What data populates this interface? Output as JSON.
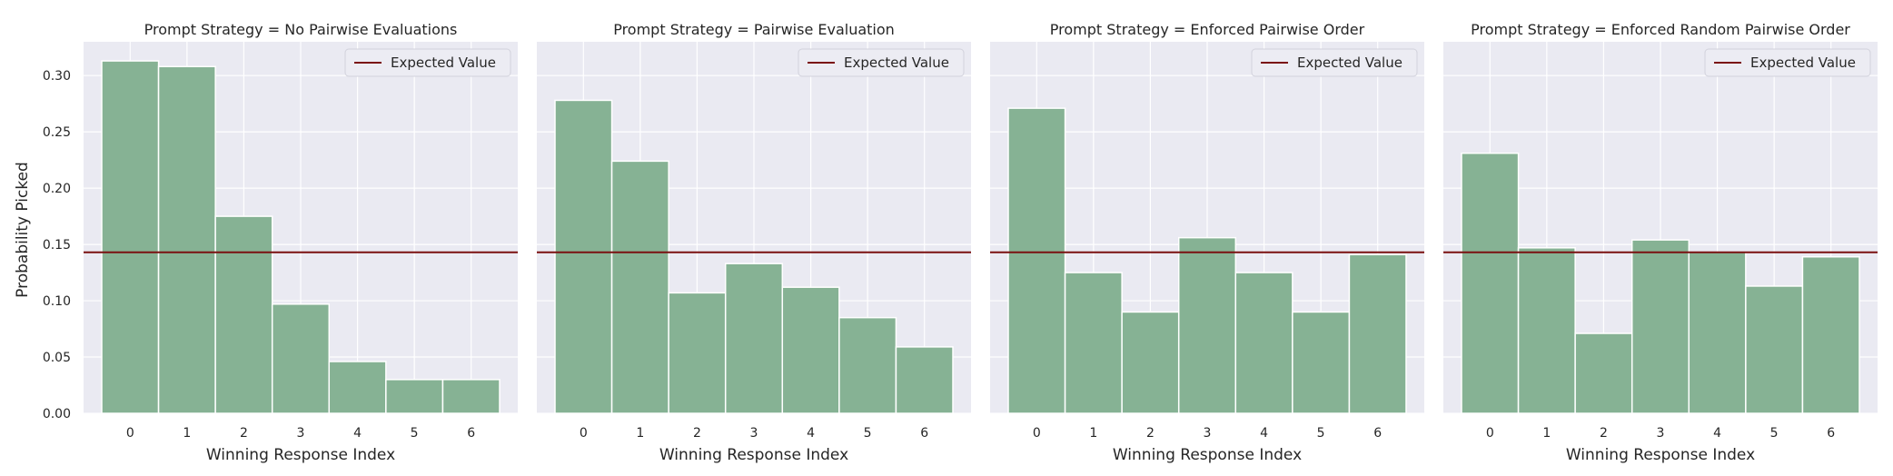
{
  "figure": {
    "ylabel": "Probability Picked"
  },
  "colors": {
    "bar": "#86b294",
    "bar_edge": "#ffffff",
    "expected_line": "#7a1010",
    "panel_bg": "#eaeaf2",
    "grid": "#ffffff"
  },
  "chart_data": [
    {
      "type": "bar",
      "title": "Prompt Strategy = No Pairwise Evaluations",
      "xlabel": "Winning Response Index",
      "ylabel": "Probability Picked",
      "categories": [
        "0",
        "1",
        "2",
        "3",
        "4",
        "5",
        "6"
      ],
      "values": [
        0.313,
        0.308,
        0.175,
        0.097,
        0.046,
        0.03,
        0.03
      ],
      "expected_value": 0.143,
      "legend": [
        "Expected Value"
      ],
      "legend_position": "top-right",
      "ylim": [
        0,
        0.33
      ],
      "yticks": [
        "0.00",
        "0.05",
        "0.10",
        "0.15",
        "0.20",
        "0.25",
        "0.30"
      ],
      "grid": true
    },
    {
      "type": "bar",
      "title": "Prompt Strategy = Pairwise Evaluation",
      "xlabel": "Winning Response Index",
      "categories": [
        "0",
        "1",
        "2",
        "3",
        "4",
        "5",
        "6"
      ],
      "values": [
        0.278,
        0.224,
        0.107,
        0.133,
        0.112,
        0.085,
        0.059
      ],
      "expected_value": 0.143,
      "legend": [
        "Expected Value"
      ],
      "legend_position": "top-right",
      "ylim": [
        0,
        0.33
      ],
      "grid": true
    },
    {
      "type": "bar",
      "title": "Prompt Strategy = Enforced Pairwise Order",
      "xlabel": "Winning Response Index",
      "categories": [
        "0",
        "1",
        "2",
        "3",
        "4",
        "5",
        "6"
      ],
      "values": [
        0.271,
        0.125,
        0.09,
        0.156,
        0.125,
        0.09,
        0.141
      ],
      "expected_value": 0.143,
      "legend": [
        "Expected Value"
      ],
      "legend_position": "top-right",
      "ylim": [
        0,
        0.33
      ],
      "grid": true
    },
    {
      "type": "bar",
      "title": "Prompt Strategy = Enforced Random Pairwise Order",
      "xlabel": "Winning Response Index",
      "categories": [
        "0",
        "1",
        "2",
        "3",
        "4",
        "5",
        "6"
      ],
      "values": [
        0.231,
        0.147,
        0.071,
        0.154,
        0.143,
        0.113,
        0.139
      ],
      "expected_value": 0.143,
      "legend": [
        "Expected Value"
      ],
      "legend_position": "top-right",
      "ylim": [
        0,
        0.33
      ],
      "grid": true
    }
  ]
}
